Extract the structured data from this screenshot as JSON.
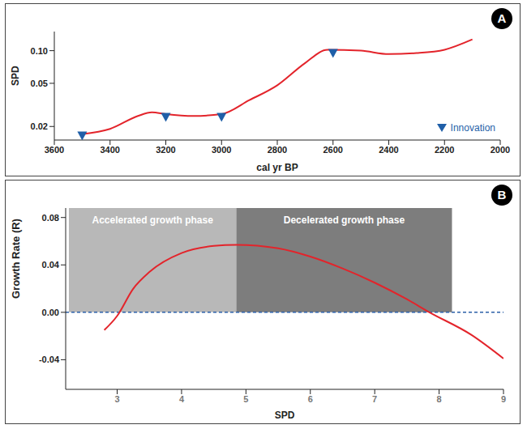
{
  "chart_data": [
    {
      "type": "line",
      "title": "A",
      "x_label": "cal yr BP",
      "y_label": "SPD",
      "log": "y",
      "xlim": [
        3600,
        2000
      ],
      "xticks": [
        3600,
        3400,
        3200,
        3000,
        2800,
        2600,
        2400,
        2200,
        2000
      ],
      "ylim": [
        0.015,
        0.15
      ],
      "yticks": [
        0.02,
        0.05,
        {
          "value": 0.1,
          "label": "0.10"
        }
      ],
      "legend": "lower right",
      "series": [
        {
          "type": "line",
          "color": "#e3242b",
          "x": [
            3500,
            3400,
            3300,
            3250,
            3200,
            3100,
            3000,
            2900,
            2800,
            2700,
            2620,
            2500,
            2400,
            2300,
            2200,
            2100
          ],
          "values": [
            0.017,
            0.019,
            0.025,
            0.027,
            0.026,
            0.025,
            0.026,
            0.035,
            0.048,
            0.077,
            0.102,
            0.1,
            0.093,
            0.095,
            0.102,
            0.127
          ]
        },
        {
          "type": "scatter",
          "name": "Innovation",
          "marker": "triangle_down",
          "color": "#1f5fa8",
          "x": [
            3500,
            3200,
            3000,
            2600
          ],
          "values": [
            0.0165,
            0.0245,
            0.0245,
            0.095
          ]
        }
      ]
    },
    {
      "type": "line",
      "title": "B",
      "x_label": "SPD",
      "y_label": "Growth Rate (R)",
      "xlim": [
        2.2,
        9
      ],
      "xticks": [
        3,
        4,
        5,
        6,
        7,
        8,
        9
      ],
      "ylim": [
        -0.065,
        0.088
      ],
      "yticks": [
        {
          "value": -0.04,
          "label": "-0.04"
        },
        {
          "value": 0,
          "label": "0.00"
        },
        0.04,
        0.08
      ],
      "reference_lines": [
        {
          "y": 0,
          "color": "#2b5fa8",
          "line_style": "dashed"
        }
      ],
      "regions": [
        {
          "label": "Accelerated growth phase",
          "x": [
            2.25,
            4.85
          ],
          "y": [
            0,
            0.088
          ],
          "color": "#b8b8b8"
        },
        {
          "label": "Decelerated growth phase",
          "x": [
            4.85,
            8.2
          ],
          "y": [
            0,
            0.088
          ],
          "color": "#7d7d7d"
        }
      ],
      "series": [
        {
          "type": "line",
          "color": "#e3242b",
          "x": [
            2.8,
            3.0,
            3.25,
            3.5,
            4,
            4.5,
            4.85,
            5.5,
            6,
            6.5,
            7,
            7.5,
            7.85,
            8.5,
            9
          ],
          "values": [
            -0.015,
            -0.003,
            0.02,
            0.034,
            0.05,
            0.056,
            0.057,
            0.054,
            0.047,
            0.037,
            0.025,
            0.011,
            0,
            -0.019,
            -0.039
          ]
        }
      ]
    }
  ]
}
